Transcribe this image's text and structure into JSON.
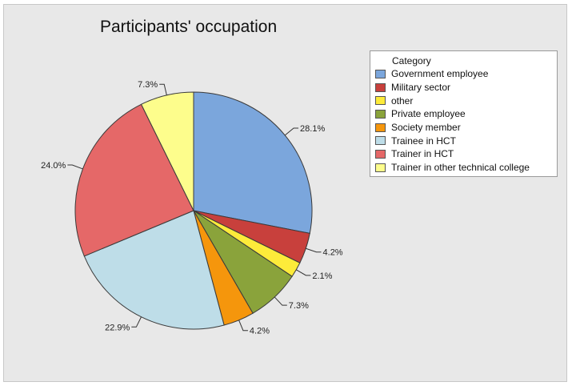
{
  "chart_data": {
    "type": "pie",
    "title": "Participants' occupation",
    "legend_title": "Category",
    "legend_position": "right",
    "slices": [
      {
        "label": "Government employee",
        "value": 28.1,
        "display": "28.1%",
        "color": "#7ba6dc"
      },
      {
        "label": "Military sector",
        "value": 4.2,
        "display": "4.2%",
        "color": "#c8403c"
      },
      {
        "label": "other",
        "value": 2.1,
        "display": "2.1%",
        "color": "#fdeb3a"
      },
      {
        "label": "Private employee",
        "value": 7.3,
        "display": "7.3%",
        "color": "#8aa33b"
      },
      {
        "label": "Society member",
        "value": 4.2,
        "display": "4.2%",
        "color": "#f5960c"
      },
      {
        "label": "Trainee in HCT",
        "value": 22.9,
        "display": "22.9%",
        "color": "#bedde8"
      },
      {
        "label": "Trainer in HCT",
        "value": 24.0,
        "display": "24.0%",
        "color": "#e56868"
      },
      {
        "label": "Trainer in other technical college",
        "value": 7.3,
        "display": "7.3%",
        "color": "#fdfd8c"
      }
    ]
  }
}
